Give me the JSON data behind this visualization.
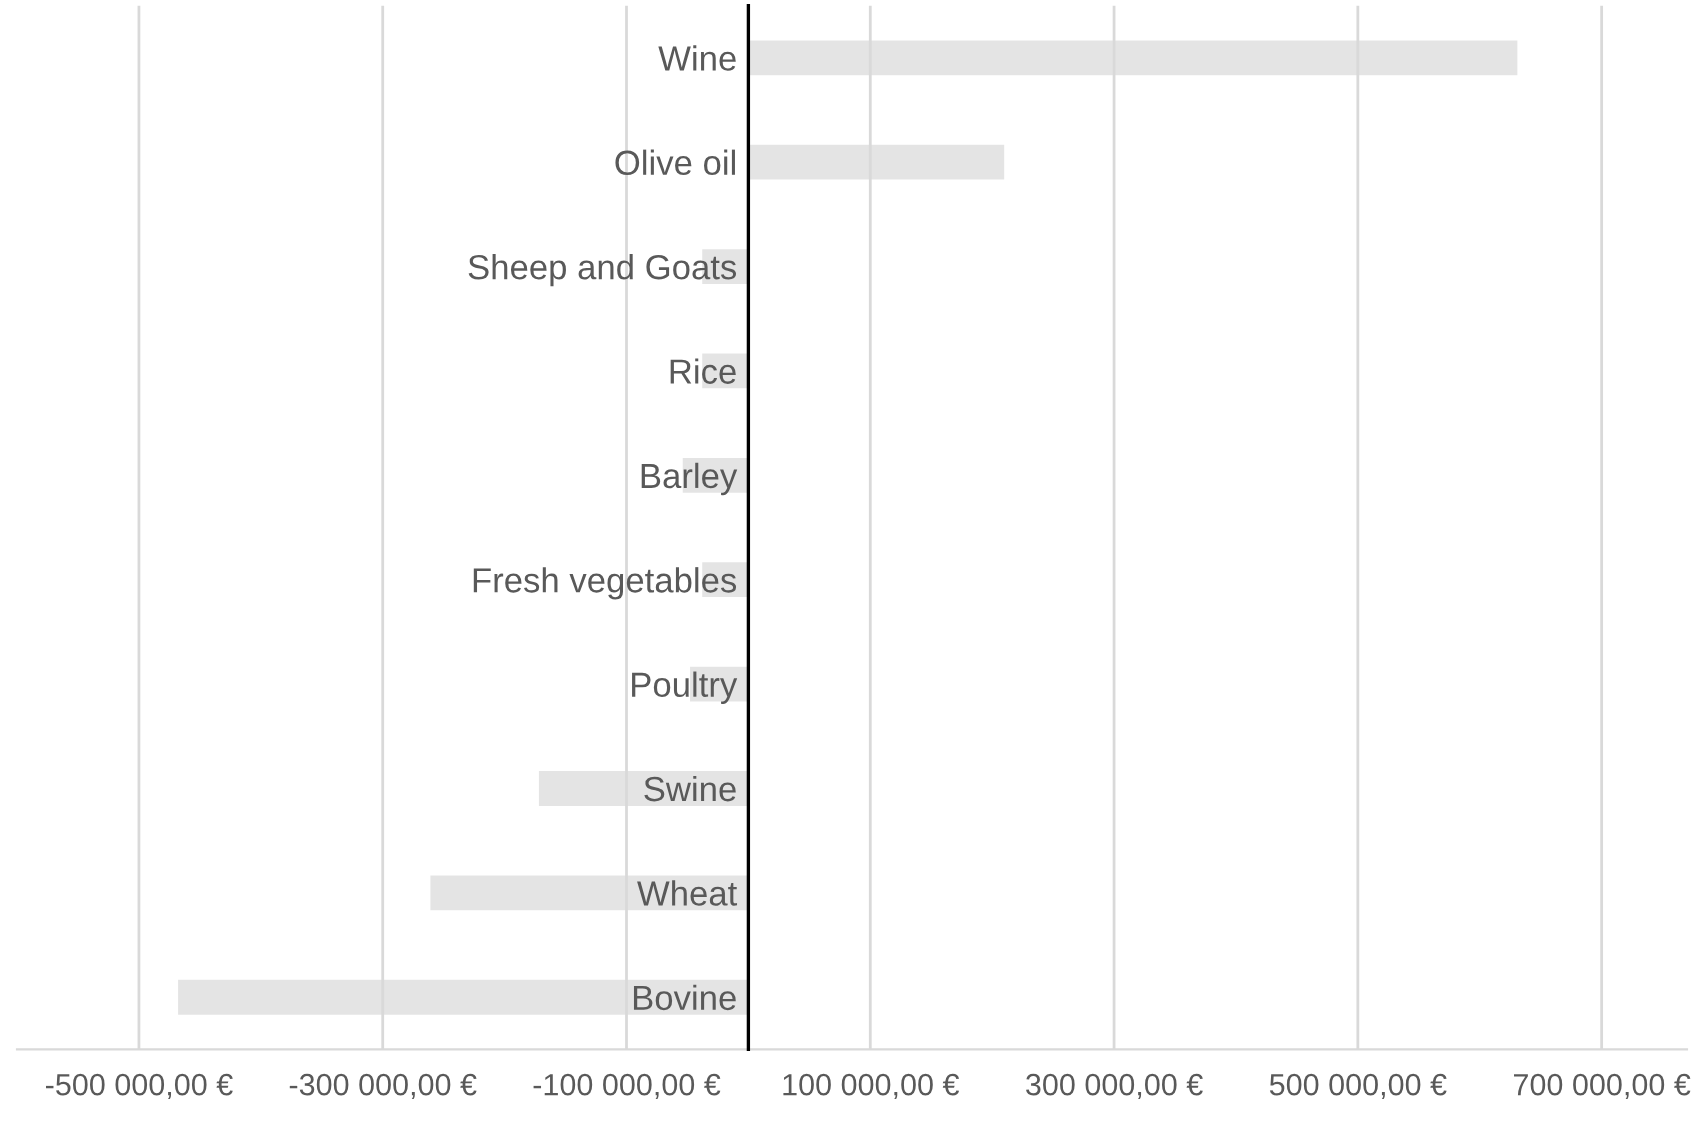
{
  "chart_data": {
    "type": "bar",
    "orientation": "horizontal",
    "categories": [
      "Wine",
      "Olive oil",
      "Sheep and Goats",
      "Rice",
      "Barley",
      "Fresh vegetables",
      "Poultry",
      "Swine",
      "Wheat",
      "Bovine"
    ],
    "values": [
      632000,
      211000,
      -39000,
      -39000,
      -55000,
      -39000,
      -49000,
      -173000,
      -262000,
      -469000
    ],
    "color": "#e4e4e4",
    "xlim": [
      -600000,
      770000
    ],
    "xticks": [
      {
        "value": -500000,
        "label": "-500 000,00 €"
      },
      {
        "value": -300000,
        "label": "-300 000,00 €"
      },
      {
        "value": -100000,
        "label": "-100 000,00 €"
      },
      {
        "value": 100000,
        "label": "100 000,00 €"
      },
      {
        "value": 300000,
        "label": "300 000,00 €"
      },
      {
        "value": 500000,
        "label": "500 000,00 €"
      },
      {
        "value": 700000,
        "label": "700 000,00 €"
      }
    ],
    "grid": "x",
    "legend": false
  }
}
